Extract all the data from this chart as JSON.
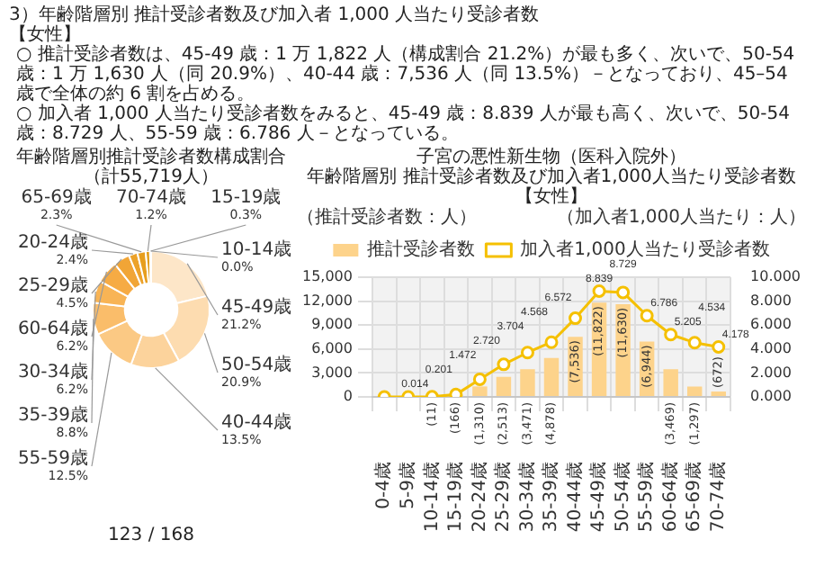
{
  "chart_data": [
    {
      "type": "bar",
      "title": "子宮の悪性新生物（医科入院外）",
      "subtitle": "年齢階層別 推計受診者数及び加入者1,000人当たり受診者数",
      "ylabel": "（推計受診者数：人）",
      "y2label": "（加入者1,000人当たり：人）",
      "annotations": [
        "3）年齢階層別 推計受診者数及び加入者 1,000 人当たり受診者数",
        "【女性】",
        "○ 推計受診者数は、45-49 歳：1 万 1,822 人（構成割合 21.2%）が最も多く、次いで、50-54 歳：1 万 1,630 人（同 20.9%）、40-44 歳：7,536 人（同 13.5%）－となっており、45–54 歳で全体の約 6 割を占める。",
        "○ 加入者 1,000 人当たり受診者数をみると、45-49 歳：8.839 人が最も高く、次いで、50-54 歳：8.729 人、55-59 歳：6.786 人－となっている。",
        "【女性】",
        "123 / 168"
      ],
      "categories": [
        "0-4歳",
        "5-9歳",
        "10-14歳",
        "15-19歳",
        "20-24歳",
        "25-29歳",
        "30-34歳",
        "35-39歳",
        "40-44歳",
        "45-49歳",
        "50-54歳",
        "55-59歳",
        "60-64歳",
        "65-69歳",
        "70-74歳"
      ],
      "series": [
        {
          "name": "推計受診者数",
          "type": "bar",
          "color": "#fdd38b",
          "values": [
            0,
            0,
            11,
            166,
            1310,
            2513,
            3471,
            4878,
            7536,
            11822,
            11630,
            6944,
            3469,
            1297,
            672
          ],
          "value_labels": [
            null,
            null,
            "(11)",
            "(166)",
            "(1,310)",
            "(2,513)",
            "(3,471)",
            "(4,878)",
            "(7,536)",
            "(11,822)",
            "(11,630)",
            "(6,944)",
            "(3,469)",
            "(1,297)",
            "(672)"
          ]
        },
        {
          "name": "加入者1,000人当たり受診者数",
          "type": "line",
          "axis": "y2",
          "color": "#f5c000",
          "values": [
            0,
            0,
            0.014,
            0.201,
            1.472,
            2.72,
            3.704,
            4.568,
            6.572,
            8.839,
            8.729,
            6.786,
            5.205,
            4.534,
            4.178
          ],
          "value_labels": [
            null,
            null,
            "0.014",
            "0.201",
            "1.472",
            "2.720",
            "3.704",
            "4.568",
            "6.572",
            "8.839",
            "8.729",
            "6.786",
            "5.205",
            "4.534",
            "4.178"
          ]
        }
      ],
      "ylim": [
        0,
        15000
      ],
      "yticks": [
        {
          "value": 0,
          "label": "0"
        },
        {
          "value": 3000,
          "label": "3,000"
        },
        {
          "value": 6000,
          "label": "6,000"
        },
        {
          "value": 9000,
          "label": "9,000"
        },
        {
          "value": 12000,
          "label": "12,000"
        },
        {
          "value": 15000,
          "label": "15,000"
        }
      ],
      "y2lim": [
        0,
        10
      ],
      "y2ticks": [
        {
          "value": 0,
          "label": "0.000"
        },
        {
          "value": 2,
          "label": "2.000"
        },
        {
          "value": 4,
          "label": "4.000"
        },
        {
          "value": 6,
          "label": "6.000"
        },
        {
          "value": 8,
          "label": "8.000"
        },
        {
          "value": 10,
          "label": "10.000"
        }
      ],
      "grid": true,
      "legend": "top",
      "marker": "circle"
    },
    {
      "type": "donut",
      "title": "年齢階層別推計受診者数構成割合",
      "subtitle": "（計55,719人）",
      "categories": [
        "45-49歳",
        "50-54歳",
        "40-44歳",
        "55-59歳",
        "35-39歳",
        "30-34歳",
        "60-64歳",
        "25-29歳",
        "20-24歳",
        "65-69歳",
        "70-74歳",
        "15-19歳",
        "10-14歳"
      ],
      "values": [
        21.2,
        20.9,
        13.5,
        12.5,
        8.8,
        6.2,
        6.2,
        4.5,
        2.4,
        2.3,
        1.2,
        0.3,
        0.0
      ],
      "value_labels": [
        "21.2%",
        "20.9%",
        "13.5%",
        "12.5%",
        "8.8%",
        "6.2%",
        "6.2%",
        "4.5%",
        "2.4%",
        "2.3%",
        "1.2%",
        "0.3%",
        "0.0%"
      ],
      "colors": [
        "#fde6c8",
        "#fddcb0",
        "#fcd39c",
        "#fbc984",
        "#fabd6a",
        "#f8b455",
        "#f6ab44",
        "#f1a536",
        "#eca22a",
        "#e79e1e",
        "#e19a12",
        "#da9608",
        "#d29000"
      ]
    }
  ]
}
